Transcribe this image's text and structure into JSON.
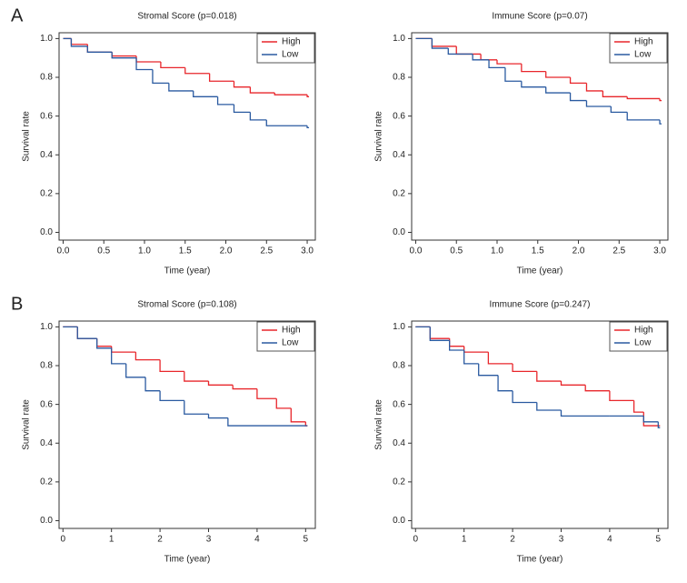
{
  "chart_data": [
    {
      "type": "step",
      "panel_label": "A",
      "title": "Stromal Score (p=0.018)",
      "x_label": "Time (year)",
      "y_label": "Survival rate",
      "xlim": [
        -0.05,
        3.1
      ],
      "ylim": [
        -0.04,
        1.03
      ],
      "xticks": [
        {
          "value": 0,
          "label": "0.0"
        },
        0.5,
        {
          "value": 1,
          "label": "1.0"
        },
        1.5,
        {
          "value": 2,
          "label": "2.0"
        },
        2.5,
        {
          "value": 3,
          "label": "3.0"
        }
      ],
      "yticks": [
        {
          "value": 0,
          "label": "0.0"
        },
        0.2,
        0.4,
        0.6,
        0.8,
        {
          "value": 1,
          "label": "1.0"
        }
      ],
      "legend": "top-right",
      "series": [
        {
          "name": "High",
          "color": "#e8262b",
          "x": [
            0,
            0.1,
            0.3,
            0.6,
            0.9,
            1.2,
            1.5,
            1.8,
            2.1,
            2.3,
            2.6,
            3.0
          ],
          "values": [
            1.0,
            0.97,
            0.93,
            0.91,
            0.88,
            0.85,
            0.82,
            0.78,
            0.75,
            0.72,
            0.71,
            0.7
          ]
        },
        {
          "name": "Low",
          "color": "#2a5aa0",
          "x": [
            0,
            0.1,
            0.3,
            0.6,
            0.9,
            1.1,
            1.3,
            1.6,
            1.9,
            2.1,
            2.3,
            2.5,
            3.0
          ],
          "values": [
            1.0,
            0.96,
            0.93,
            0.9,
            0.84,
            0.77,
            0.73,
            0.7,
            0.66,
            0.62,
            0.58,
            0.55,
            0.54
          ]
        }
      ]
    },
    {
      "type": "step",
      "title": "Immune Score (p=0.07)",
      "x_label": "Time (year)",
      "y_label": "Survival rate",
      "xlim": [
        -0.05,
        3.1
      ],
      "ylim": [
        -0.04,
        1.03
      ],
      "xticks": [
        {
          "value": 0,
          "label": "0.0"
        },
        0.5,
        {
          "value": 1,
          "label": "1.0"
        },
        1.5,
        {
          "value": 2,
          "label": "2.0"
        },
        2.5,
        {
          "value": 3,
          "label": "3.0"
        }
      ],
      "yticks": [
        {
          "value": 0,
          "label": "0.0"
        },
        0.2,
        0.4,
        0.6,
        0.8,
        {
          "value": 1,
          "label": "1.0"
        }
      ],
      "legend": "top-right",
      "series": [
        {
          "name": "High",
          "color": "#e8262b",
          "x": [
            0,
            0.2,
            0.5,
            0.8,
            1.0,
            1.3,
            1.6,
            1.9,
            2.1,
            2.3,
            2.6,
            3.0
          ],
          "values": [
            1.0,
            0.96,
            0.92,
            0.89,
            0.87,
            0.83,
            0.8,
            0.77,
            0.73,
            0.7,
            0.69,
            0.68
          ]
        },
        {
          "name": "Low",
          "color": "#2a5aa0",
          "x": [
            0,
            0.2,
            0.4,
            0.7,
            0.9,
            1.1,
            1.3,
            1.6,
            1.9,
            2.1,
            2.4,
            2.6,
            3.0
          ],
          "values": [
            1.0,
            0.95,
            0.92,
            0.89,
            0.85,
            0.78,
            0.75,
            0.72,
            0.68,
            0.65,
            0.62,
            0.58,
            0.56
          ]
        }
      ]
    },
    {
      "type": "step",
      "panel_label": "B",
      "title": "Stromal Score (p=0.108)",
      "x_label": "Time (year)",
      "y_label": "Survival rate",
      "xlim": [
        -0.08,
        5.2
      ],
      "ylim": [
        -0.04,
        1.03
      ],
      "xticks": [
        0,
        1,
        2,
        3,
        4,
        5
      ],
      "yticks": [
        {
          "value": 0,
          "label": "0.0"
        },
        0.2,
        0.4,
        0.6,
        0.8,
        {
          "value": 1,
          "label": "1.0"
        }
      ],
      "legend": "top-right",
      "series": [
        {
          "name": "High",
          "color": "#e8262b",
          "x": [
            0,
            0.3,
            0.7,
            1.0,
            1.5,
            2.0,
            2.5,
            3.0,
            3.5,
            4.0,
            4.4,
            4.7,
            5.0
          ],
          "values": [
            1.0,
            0.94,
            0.9,
            0.87,
            0.83,
            0.77,
            0.72,
            0.7,
            0.68,
            0.63,
            0.58,
            0.51,
            0.49
          ]
        },
        {
          "name": "Low",
          "color": "#2a5aa0",
          "x": [
            0,
            0.3,
            0.7,
            1.0,
            1.3,
            1.7,
            2.0,
            2.5,
            3.0,
            3.4,
            5.0
          ],
          "values": [
            1.0,
            0.94,
            0.89,
            0.81,
            0.74,
            0.67,
            0.62,
            0.55,
            0.53,
            0.49,
            0.49
          ]
        }
      ]
    },
    {
      "type": "step",
      "title": "Immune Score (p=0.247)",
      "x_label": "Time (year)",
      "y_label": "Survival rate",
      "xlim": [
        -0.08,
        5.2
      ],
      "ylim": [
        -0.04,
        1.03
      ],
      "xticks": [
        0,
        1,
        2,
        3,
        4,
        5
      ],
      "yticks": [
        {
          "value": 0,
          "label": "0.0"
        },
        0.2,
        0.4,
        0.6,
        0.8,
        {
          "value": 1,
          "label": "1.0"
        }
      ],
      "legend": "top-right",
      "series": [
        {
          "name": "High",
          "color": "#e8262b",
          "x": [
            0,
            0.3,
            0.7,
            1.0,
            1.5,
            2.0,
            2.5,
            3.0,
            3.5,
            4.0,
            4.5,
            4.7,
            5.0
          ],
          "values": [
            1.0,
            0.94,
            0.9,
            0.87,
            0.81,
            0.77,
            0.72,
            0.7,
            0.67,
            0.62,
            0.56,
            0.49,
            0.49
          ]
        },
        {
          "name": "Low",
          "color": "#2a5aa0",
          "x": [
            0,
            0.3,
            0.7,
            1.0,
            1.3,
            1.7,
            2.0,
            2.5,
            3.0,
            4.0,
            4.7,
            5.0
          ],
          "values": [
            1.0,
            0.93,
            0.88,
            0.81,
            0.75,
            0.67,
            0.61,
            0.57,
            0.54,
            0.54,
            0.51,
            0.48
          ]
        }
      ]
    }
  ]
}
